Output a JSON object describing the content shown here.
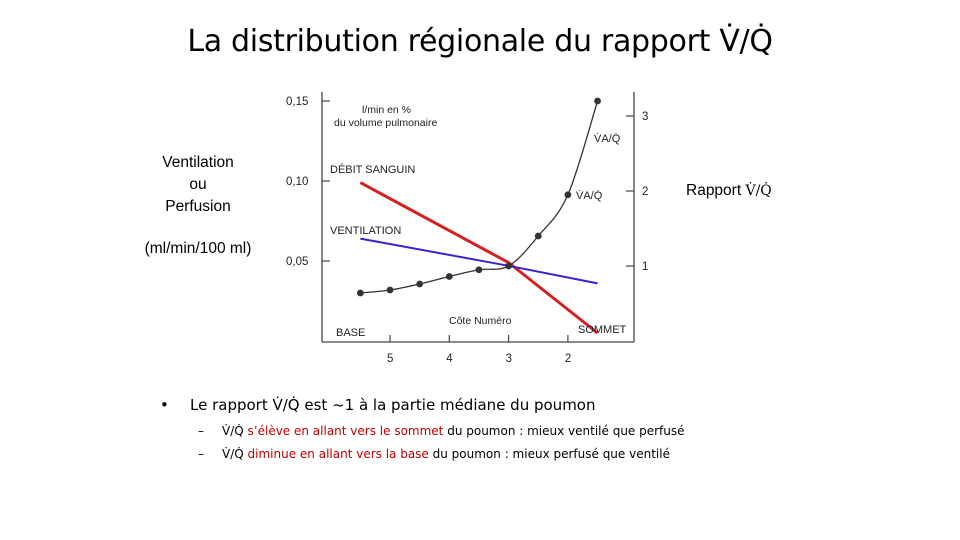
{
  "title": "La distribution régionale du rapport V̇/Q̇",
  "left_axis": {
    "label_lines": [
      "Ventilation",
      "ou",
      "Perfusion"
    ],
    "unit": "(ml/min/100 ml)"
  },
  "right_axis": {
    "label": "Rapport",
    "symbol": "V̇/Q̇"
  },
  "figure_labels": {
    "unit_line1": "l/min en %",
    "unit_line2": "du volume pulmonaire",
    "debit": "DÉBIT SANGUIN",
    "ventilation": "VENTILATION",
    "va_q_top": "V̇A/Q̇",
    "va_q_mid": "V̇A/Q̇",
    "cote": "Côte Numéro",
    "base": "BASE",
    "sommet": "SOMMET"
  },
  "chart_data": {
    "type": "line",
    "xlabel": "Côte Numéro",
    "x_ticks": [
      "5",
      "4",
      "3",
      "2"
    ],
    "y_left_ticks": [
      "0,15",
      "0,10",
      "0,05"
    ],
    "y_right_ticks": [
      "3",
      "2",
      "1"
    ],
    "ylim_left": [
      0,
      0.15
    ],
    "ylim_right": [
      0,
      3
    ],
    "series": [
      {
        "name": "DÉBIT SANGUIN",
        "color": "#d42020",
        "axis": "left",
        "x": [
          5.5,
          3,
          1.5
        ],
        "y": [
          0.099,
          0.049,
          0.005
        ]
      },
      {
        "name": "VENTILATION",
        "color": "#3a22cc",
        "axis": "left",
        "x": [
          5.5,
          3,
          1.5
        ],
        "y": [
          0.064,
          0.047,
          0.036
        ]
      },
      {
        "name": "V̇A/Q̇",
        "color": "#333333",
        "axis": "right",
        "x": [
          5.5,
          5,
          4.5,
          4,
          3.5,
          3,
          2.5,
          2,
          1.5
        ],
        "y": [
          0.64,
          0.68,
          0.76,
          0.86,
          0.95,
          1.0,
          1.4,
          1.95,
          3.2
        ]
      }
    ]
  },
  "bullets": {
    "main": "Le rapport V̇/Q̇ est ~1 à la partie médiane du poumon",
    "sub1": {
      "sym": "V̇/Q̇",
      "red": "s’élève en allant vers le sommet",
      "rest": "du poumon : mieux ventilé que perfusé"
    },
    "sub2": {
      "sym": "V̇/Q̇",
      "red": "diminue en allant vers la base",
      "rest": "du poumon : mieux perfusé que ventilé"
    }
  }
}
